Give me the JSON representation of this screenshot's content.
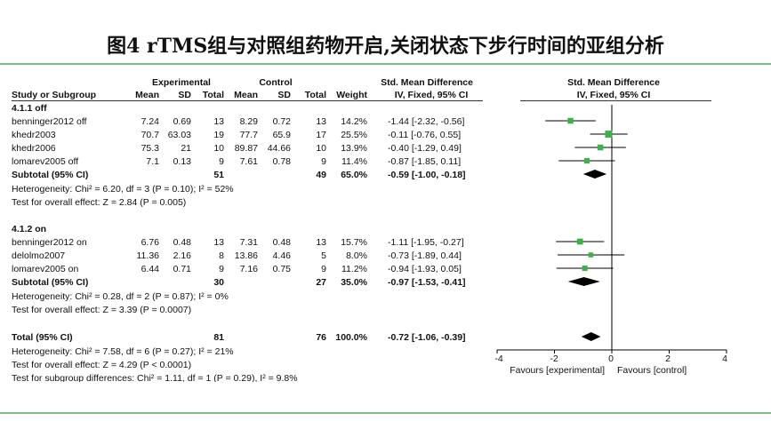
{
  "figure": {
    "title": "图4   rTMS组与对照组药物开启,关闭状态下步行时间的亚组分析"
  },
  "header": {
    "experimental": "Experimental",
    "control": "Control",
    "smd_left_title": "Std. Mean Difference",
    "smd_right_title": "Std. Mean Difference",
    "study_col": "Study or Subgroup",
    "mean": "Mean",
    "sd": "SD",
    "total": "Total",
    "weight": "Weight",
    "ci_left": "IV, Fixed, 95% CI",
    "ci_right": "IV, Fixed, 95% CI"
  },
  "subgroups": [
    {
      "label": "4.1.1 off",
      "studies": [
        {
          "name": "benninger2012 off",
          "e_mean": "7.24",
          "e_sd": "0.69",
          "e_total": "13",
          "c_mean": "8.29",
          "c_sd": "0.72",
          "c_total": "13",
          "weight": "14.2%",
          "ci": "-1.44 [-2.32, -0.56]",
          "smd": -1.44,
          "lo": -2.32,
          "hi": -0.56,
          "w": 14.2
        },
        {
          "name": "khedr2003",
          "e_mean": "70.7",
          "e_sd": "63.03",
          "e_total": "19",
          "c_mean": "77.7",
          "c_sd": "65.9",
          "c_total": "17",
          "weight": "25.5%",
          "ci": "-0.11 [-0.76, 0.55]",
          "smd": -0.11,
          "lo": -0.76,
          "hi": 0.55,
          "w": 25.5
        },
        {
          "name": "khedr2006",
          "e_mean": "75.3",
          "e_sd": "21",
          "e_total": "10",
          "c_mean": "89.87",
          "c_sd": "44.66",
          "c_total": "10",
          "weight": "13.9%",
          "ci": "-0.40 [-1.29, 0.49]",
          "smd": -0.4,
          "lo": -1.29,
          "hi": 0.49,
          "w": 13.9
        },
        {
          "name": "lomarev2005 off",
          "e_mean": "7.1",
          "e_sd": "0.13",
          "e_total": "9",
          "c_mean": "7.61",
          "c_sd": "0.78",
          "c_total": "9",
          "weight": "11.4%",
          "ci": "-0.87 [-1.85, 0.11]",
          "smd": -0.87,
          "lo": -1.85,
          "hi": 0.11,
          "w": 11.4
        }
      ],
      "subtotal": {
        "label": "Subtotal (95% CI)",
        "e_total": "51",
        "c_total": "49",
        "weight": "65.0%",
        "ci": "-0.59 [-1.00, -0.18]",
        "smd": -0.59,
        "lo": -1.0,
        "hi": -0.18
      },
      "heterogeneity": "Heterogeneity: Chi² = 6.20, df = 3 (P = 0.10); I² = 52%",
      "overall": "Test for overall effect: Z = 2.84 (P = 0.005)"
    },
    {
      "label": "4.1.2 on",
      "studies": [
        {
          "name": "benninger2012 on",
          "e_mean": "6.76",
          "e_sd": "0.48",
          "e_total": "13",
          "c_mean": "7.31",
          "c_sd": "0.48",
          "c_total": "13",
          "weight": "15.7%",
          "ci": "-1.11 [-1.95, -0.27]",
          "smd": -1.11,
          "lo": -1.95,
          "hi": -0.27,
          "w": 15.7
        },
        {
          "name": "delolmo2007",
          "e_mean": "11.36",
          "e_sd": "2.16",
          "e_total": "8",
          "c_mean": "13.86",
          "c_sd": "4.46",
          "c_total": "5",
          "weight": "8.0%",
          "ci": "-0.73 [-1.89, 0.44]",
          "smd": -0.73,
          "lo": -1.89,
          "hi": 0.44,
          "w": 8.0
        },
        {
          "name": "lomarev2005 on",
          "e_mean": "6.44",
          "e_sd": "0.71",
          "e_total": "9",
          "c_mean": "7.16",
          "c_sd": "0.75",
          "c_total": "9",
          "weight": "11.2%",
          "ci": "-0.94 [-1.93, 0.05]",
          "smd": -0.94,
          "lo": -1.93,
          "hi": 0.05,
          "w": 11.2
        }
      ],
      "subtotal": {
        "label": "Subtotal (95% CI)",
        "e_total": "30",
        "c_total": "27",
        "weight": "35.0%",
        "ci": "-0.97 [-1.53, -0.41]",
        "smd": -0.97,
        "lo": -1.53,
        "hi": -0.41
      },
      "heterogeneity": "Heterogeneity: Chi² = 0.28, df = 2 (P = 0.87); I² = 0%",
      "overall": "Test for overall effect: Z = 3.39 (P = 0.0007)"
    }
  ],
  "total": {
    "label": "Total (95% CI)",
    "e_total": "81",
    "c_total": "76",
    "weight": "100.0%",
    "ci": "-0.72 [-1.06, -0.39]",
    "smd": -0.72,
    "lo": -1.06,
    "hi": -0.39,
    "heterogeneity": "Heterogeneity: Chi² = 7.58, df = 6 (P = 0.27); I² = 21%",
    "overall": "Test for overall effect: Z = 4.29 (P < 0.0001)",
    "subgroup_diff": "Test for subgroup differences: Chi² = 1.11, df = 1 (P = 0.29), I² = 9.8%"
  },
  "axis": {
    "min": -4,
    "max": 4,
    "ticks": [
      -4,
      -2,
      0,
      2,
      4
    ],
    "tick_labels": [
      "-4",
      "-2",
      "0",
      "2",
      "4"
    ],
    "favours_left": "Favours [experimental]",
    "favours_right": "Favours [control]"
  },
  "colors": {
    "square": "#3cb34a",
    "line": "#000000",
    "rule": "#7bbf86"
  }
}
